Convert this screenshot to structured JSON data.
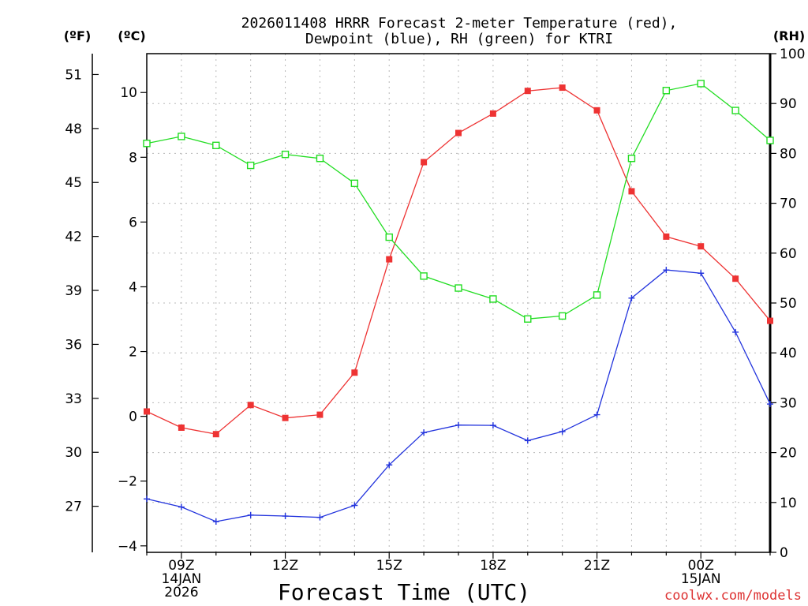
{
  "chart_data": {
    "type": "line",
    "title_line1": "2026011408 HRRR Forecast 2-meter Temperature (red),",
    "title_line2": "Dewpoint (blue), RH (green) for KTRI",
    "xlabel": "Forecast Time (UTC)",
    "watermark": "coolwx.com/models",
    "unit_labels": {
      "fahrenheit": "(ºF)",
      "celsius": "(ºC)",
      "rh": "(RH)"
    },
    "x_hours": [
      8,
      9,
      10,
      11,
      12,
      13,
      14,
      15,
      16,
      17,
      18,
      19,
      20,
      21,
      22,
      23,
      24,
      25,
      26
    ],
    "xlim": [
      8,
      26
    ],
    "x_ticks": [
      {
        "hour": 9,
        "lines": [
          "09Z",
          "14JAN",
          "2026"
        ]
      },
      {
        "hour": 12,
        "lines": [
          "12Z"
        ]
      },
      {
        "hour": 15,
        "lines": [
          "15Z"
        ]
      },
      {
        "hour": 18,
        "lines": [
          "18Z"
        ]
      },
      {
        "hour": 21,
        "lines": [
          "21Z"
        ]
      },
      {
        "hour": 24,
        "lines": [
          "00Z",
          "15JAN"
        ]
      }
    ],
    "y_celsius": {
      "lim": [
        -4.2,
        11.2
      ],
      "ticks": [
        -4,
        -2,
        0,
        2,
        4,
        6,
        8,
        10
      ],
      "tick_labels": [
        "−4",
        "−2",
        "0",
        "2",
        "4",
        "6",
        "8",
        "10"
      ]
    },
    "y_fahrenheit": {
      "ticks": [
        27,
        30,
        33,
        36,
        39,
        42,
        45,
        48,
        51
      ],
      "tick_labels": [
        "27",
        "30",
        "33",
        "36",
        "39",
        "42",
        "45",
        "48",
        "51"
      ]
    },
    "y_rh": {
      "lim": [
        0,
        100
      ],
      "ticks": [
        0,
        10,
        20,
        30,
        40,
        50,
        60,
        70,
        80,
        90,
        100
      ],
      "tick_labels": [
        "0",
        "10",
        "20",
        "30",
        "40",
        "50",
        "60",
        "70",
        "80",
        "90",
        "100"
      ]
    },
    "series": [
      {
        "name": "Temperature",
        "axis": "celsius",
        "color": "#ee3333",
        "marker": "filled-square",
        "values": [
          0.15,
          -0.35,
          -0.55,
          0.35,
          -0.05,
          0.05,
          1.35,
          4.85,
          7.85,
          8.75,
          9.35,
          10.05,
          10.15,
          9.45,
          6.95,
          5.55,
          5.25,
          4.25,
          2.95
        ]
      },
      {
        "name": "Dewpoint",
        "axis": "celsius",
        "color": "#2233dd",
        "marker": "plus",
        "values": [
          -2.55,
          -2.8,
          -3.25,
          -3.05,
          -3.08,
          -3.12,
          -2.75,
          -1.5,
          -0.5,
          -0.27,
          -0.28,
          -0.75,
          -0.47,
          0.05,
          3.65,
          4.52,
          4.42,
          2.6,
          0.38
        ]
      },
      {
        "name": "RH",
        "axis": "rh",
        "color": "#22dd22",
        "marker": "open-square",
        "values": [
          82,
          83.4,
          81.6,
          77.6,
          79.8,
          79,
          74,
          63.2,
          55.4,
          53,
          50.8,
          46.8,
          47.4,
          51.6,
          79,
          92.6,
          94,
          88.6,
          82.6
        ]
      }
    ]
  }
}
